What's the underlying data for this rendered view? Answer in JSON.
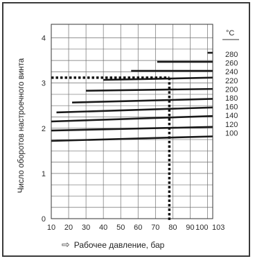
{
  "chart_data": {
    "type": "line",
    "ylabel": "Число оборотов настроечного винта",
    "xlabel": "Рабочее давление, бар",
    "x_ticks": [
      "10",
      "20",
      "30",
      "40",
      "50",
      "60",
      "70",
      "80",
      "90",
      "100",
      "103"
    ],
    "y_ticks": [
      "0",
      "1",
      "2",
      "3",
      "4"
    ],
    "xlim": [
      10,
      103
    ],
    "ylim": [
      0,
      4.3
    ],
    "grid": true,
    "unit": "°C",
    "series": [
      {
        "name": "280",
        "x": [
          100,
          103
        ],
        "y": [
          3.67,
          3.67
        ]
      },
      {
        "name": "260",
        "x": [
          71,
          103
        ],
        "y": [
          3.47,
          3.47
        ]
      },
      {
        "name": "240",
        "x": [
          56,
          103
        ],
        "y": [
          3.27,
          3.27
        ]
      },
      {
        "name": "220",
        "x": [
          40,
          103
        ],
        "y": [
          3.07,
          3.12
        ]
      },
      {
        "name": "200",
        "x": [
          30,
          103
        ],
        "y": [
          2.83,
          2.87
        ]
      },
      {
        "name": "180",
        "x": [
          22,
          103
        ],
        "y": [
          2.57,
          2.65
        ]
      },
      {
        "name": "160",
        "x": [
          13,
          103
        ],
        "y": [
          2.35,
          2.46
        ]
      },
      {
        "name": "140",
        "x": [
          10,
          103
        ],
        "y": [
          2.15,
          2.27
        ]
      },
      {
        "name": "120",
        "x": [
          10,
          103
        ],
        "y": [
          1.95,
          2.03
        ]
      },
      {
        "name": "100",
        "x": [
          10,
          103
        ],
        "y": [
          1.72,
          1.82
        ]
      }
    ],
    "example": {
      "x": 78,
      "y": 3.12
    }
  },
  "colors": {
    "line": "#1a1a1a",
    "grid": "#6f6f6f",
    "frame": "#3a3a3a",
    "dotted": "#111111"
  },
  "icons": {
    "arrow": "hollow-right-arrow-icon"
  }
}
